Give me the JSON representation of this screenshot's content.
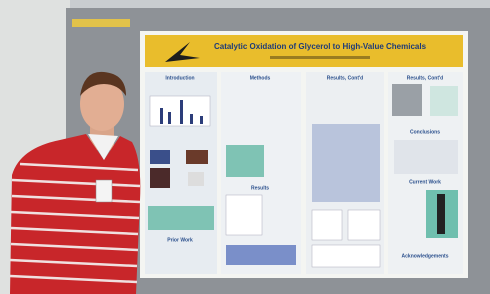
{
  "poster": {
    "title": "Catalytic Oxidation of Glycerol to High-Value Chemicals",
    "sections": [
      "Introduction",
      "Methods",
      "Results, Cont'd",
      "Results, Cont'd",
      "Results",
      "Conclusions",
      "Current Work",
      "Prior Work",
      "Acknowledgements"
    ]
  }
}
